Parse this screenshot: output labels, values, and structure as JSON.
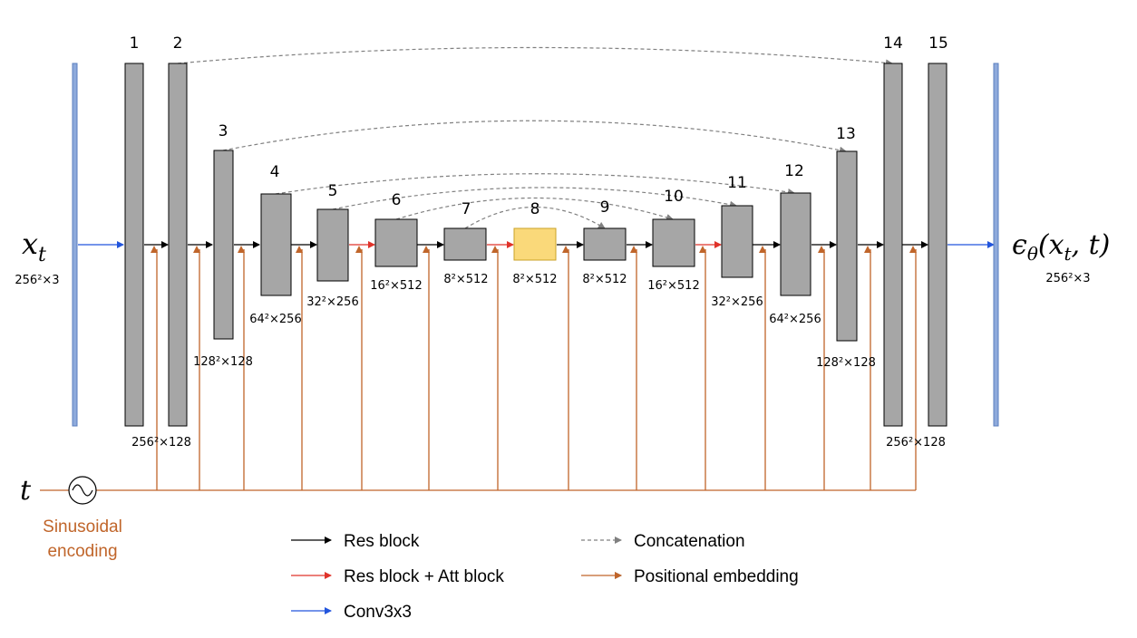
{
  "input": {
    "symbol": "x",
    "subscript": "t",
    "dim": "256²×3"
  },
  "output": {
    "symbol": "ϵ",
    "subscript": "θ",
    "args": "(x",
    "args_sub": "t",
    "args_tail": ", t)",
    "dim": "256²×3"
  },
  "time": {
    "symbol": "t",
    "encoding_line1": "Sinusoidal",
    "encoding_line2": "encoding"
  },
  "blocks": [
    {
      "num": "1",
      "dim": "256²×128"
    },
    {
      "num": "2",
      "dim": ""
    },
    {
      "num": "3",
      "dim": "128²×128"
    },
    {
      "num": "4",
      "dim": "64²×256"
    },
    {
      "num": "5",
      "dim": "32²×256"
    },
    {
      "num": "6",
      "dim": "16²×512"
    },
    {
      "num": "7",
      "dim": "8²×512"
    },
    {
      "num": "8",
      "dim": "8²×512"
    },
    {
      "num": "9",
      "dim": "8²×512"
    },
    {
      "num": "10",
      "dim": "16²×512"
    },
    {
      "num": "11",
      "dim": "32²×256"
    },
    {
      "num": "12",
      "dim": "64²×256"
    },
    {
      "num": "13",
      "dim": "128²×128"
    },
    {
      "num": "14",
      "dim": "256²×128"
    },
    {
      "num": "15",
      "dim": ""
    }
  ],
  "legend": {
    "res_block": "Res block",
    "res_att_block": "Res block + Att block",
    "conv": "Conv3x3",
    "concat": "Concatenation",
    "pos_emb": "Positional embedding"
  },
  "colors": {
    "block": "#a6a6a6",
    "attention_block": "#fad97a",
    "conv_bar": "#8eaadb",
    "res_arrow": "#000000",
    "att_arrow": "#e0332a",
    "conv_arrow": "#2255dd",
    "concat_arrow": "#808080",
    "pos_arrow": "#c0652a"
  }
}
